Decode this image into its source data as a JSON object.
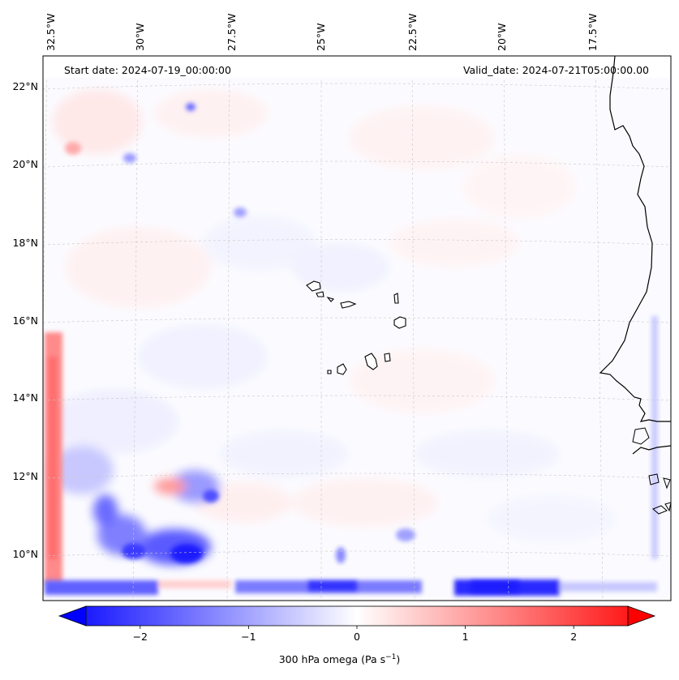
{
  "header": {
    "start_date": "Start date: 2024-07-19_00:00:00",
    "valid_date": "Valid_date: 2024-07-21T05:00:00.00"
  },
  "map": {
    "region": "Eastern tropical Atlantic / Cape Verde / West African coast",
    "lon_labels": [
      "32.5°W",
      "30°W",
      "27.5°W",
      "25°W",
      "22.5°W",
      "20°W",
      "17.5°W"
    ],
    "lat_labels": [
      "22°N",
      "20°N",
      "18°N",
      "16°N",
      "14°N",
      "12°N",
      "10°N"
    ],
    "field": "300 hPa omega",
    "colormap": "bwr",
    "colors": {
      "negative": "#0000ff",
      "zero": "#ffffff",
      "positive": "#ff0000"
    }
  },
  "colorbar": {
    "label_main": "300 hPa omega (Pa s",
    "label_exp": "−1",
    "label_close": ")",
    "range": [
      -2.5,
      2.5
    ],
    "ticks": [
      {
        "value": -2,
        "label": "−2"
      },
      {
        "value": -1,
        "label": "−1"
      },
      {
        "value": 0,
        "label": "0"
      },
      {
        "value": 1,
        "label": "1"
      },
      {
        "value": 2,
        "label": "2"
      }
    ],
    "extend": "both"
  }
}
